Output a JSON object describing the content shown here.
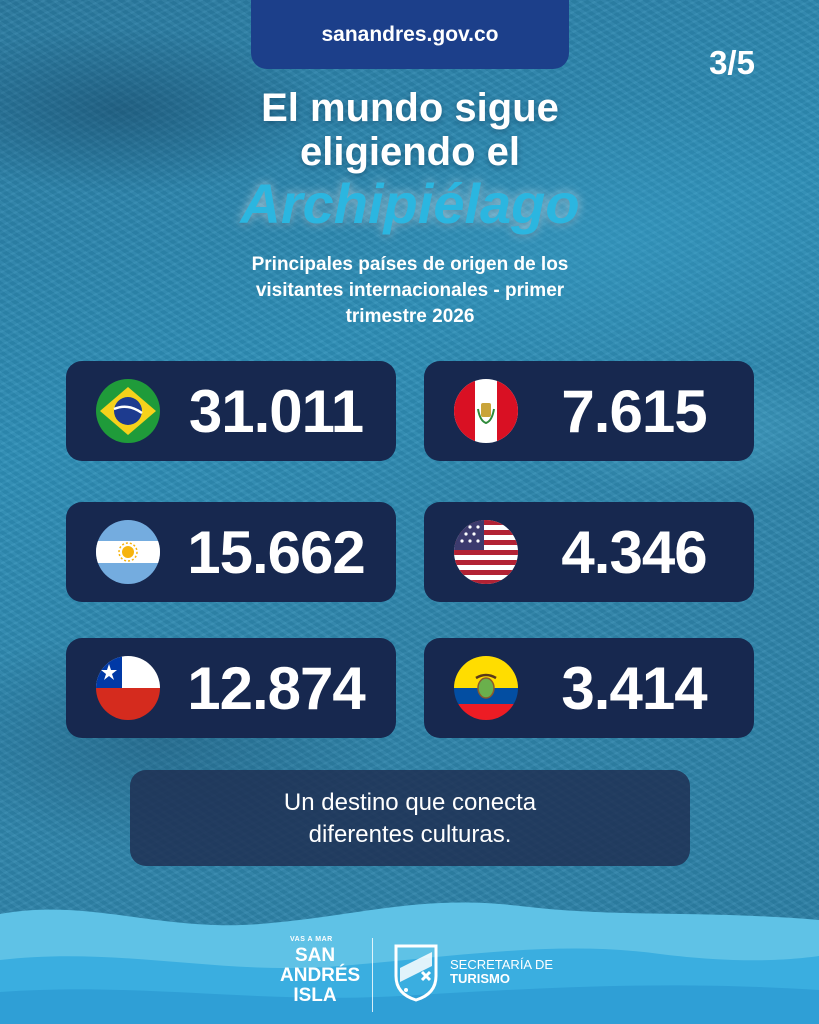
{
  "header": {
    "url": "sanandres.gov.co",
    "page_counter": "3/5"
  },
  "title": {
    "line1": "El mundo sigue",
    "line2": "eligiendo el",
    "accent": "Archipiélago"
  },
  "subtitle": {
    "line1": "Principales países de origen de los",
    "line2": "visitantes internacionales - primer",
    "line3": "trimestre 2026"
  },
  "countries": [
    {
      "flag": "brazil-flag-icon",
      "value": "31.011"
    },
    {
      "flag": "peru-flag-icon",
      "value": "7.615"
    },
    {
      "flag": "argentina-flag-icon",
      "value": "15.662"
    },
    {
      "flag": "usa-flag-icon",
      "value": "4.346"
    },
    {
      "flag": "chile-flag-icon",
      "value": "12.874"
    },
    {
      "flag": "ecuador-flag-icon",
      "value": "3.414"
    }
  ],
  "tagline": {
    "line1": "Un destino que conecta",
    "line2": "diferentes culturas."
  },
  "footer": {
    "logo_small": "VAS A MAR",
    "logo_line1": "SAN",
    "logo_line2": "ANDRÉS",
    "logo_line3": "ISLA",
    "dept_line1": "SECRETARÍA DE",
    "dept_line2": "TURISMO"
  },
  "colors": {
    "card": "#17284f",
    "url_tab": "#1c3f8a",
    "accent": "#2bb6e0",
    "wave_light": "#5fc2e6",
    "wave_dark": "#2f9fd6"
  }
}
